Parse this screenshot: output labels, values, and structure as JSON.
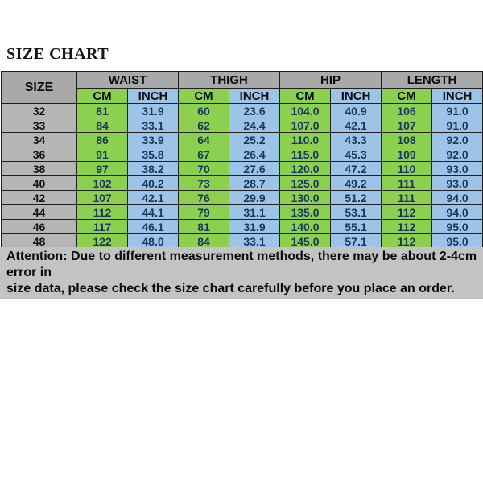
{
  "title": "SIZE CHART",
  "table": {
    "size_header": "SIZE",
    "groups": [
      "WAIST",
      "THIGH",
      "HIP",
      "LENGTH"
    ],
    "unit_headers": [
      "CM",
      "INCH"
    ],
    "rows": [
      [
        "32",
        "81",
        "31.9",
        "60",
        "23.6",
        "104.0",
        "40.9",
        "106",
        "91.0"
      ],
      [
        "33",
        "84",
        "33.1",
        "62",
        "24.4",
        "107.0",
        "42.1",
        "107",
        "91.0"
      ],
      [
        "34",
        "86",
        "33.9",
        "64",
        "25.2",
        "110.0",
        "43.3",
        "108",
        "92.0"
      ],
      [
        "36",
        "91",
        "35.8",
        "67",
        "26.4",
        "115.0",
        "45.3",
        "109",
        "92.0"
      ],
      [
        "38",
        "97",
        "38.2",
        "70",
        "27.6",
        "120.0",
        "47.2",
        "110",
        "93.0"
      ],
      [
        "40",
        "102",
        "40.2",
        "73",
        "28.7",
        "125.0",
        "49.2",
        "111",
        "93.0"
      ],
      [
        "42",
        "107",
        "42.1",
        "76",
        "29.9",
        "130.0",
        "51.2",
        "111",
        "94.0"
      ],
      [
        "44",
        "112",
        "44.1",
        "79",
        "31.1",
        "135.0",
        "53.1",
        "112",
        "94.0"
      ],
      [
        "46",
        "117",
        "46.1",
        "81",
        "31.9",
        "140.0",
        "55.1",
        "112",
        "95.0"
      ],
      [
        "48",
        "122",
        "48.0",
        "84",
        "33.1",
        "145.0",
        "57.1",
        "112",
        "95.0"
      ]
    ]
  },
  "attention": {
    "line1": "Attention: Due to different measurement methods, there may be about 2-4cm error in",
    "line2": "size data, please check the size chart carefully before you place an order."
  },
  "colors": {
    "header_gray": "#a9a9a9",
    "size_cell_gray": "#b5b5b5",
    "cm_green": "#8dd050",
    "inch_blue": "#9dc3e6",
    "attention_gray": "#c3c3c3",
    "border": "#1f1f1f"
  },
  "chart_data": {
    "type": "table",
    "title": "SIZE CHART",
    "columns": [
      "SIZE",
      "WAIST CM",
      "WAIST INCH",
      "THIGH CM",
      "THIGH INCH",
      "HIP CM",
      "HIP INCH",
      "LENGTH CM",
      "LENGTH INCH"
    ],
    "rows": [
      [
        32,
        81,
        31.9,
        60,
        23.6,
        104.0,
        40.9,
        106,
        91.0
      ],
      [
        33,
        84,
        33.1,
        62,
        24.4,
        107.0,
        42.1,
        107,
        91.0
      ],
      [
        34,
        86,
        33.9,
        64,
        25.2,
        110.0,
        43.3,
        108,
        92.0
      ],
      [
        36,
        91,
        35.8,
        67,
        26.4,
        115.0,
        45.3,
        109,
        92.0
      ],
      [
        38,
        97,
        38.2,
        70,
        27.6,
        120.0,
        47.2,
        110,
        93.0
      ],
      [
        40,
        102,
        40.2,
        73,
        28.7,
        125.0,
        49.2,
        111,
        93.0
      ],
      [
        42,
        107,
        42.1,
        76,
        29.9,
        130.0,
        51.2,
        111,
        94.0
      ],
      [
        44,
        112,
        44.1,
        79,
        31.1,
        135.0,
        53.1,
        112,
        94.0
      ],
      [
        46,
        117,
        46.1,
        81,
        31.9,
        140.0,
        55.1,
        112,
        95.0
      ],
      [
        48,
        122,
        48.0,
        84,
        33.1,
        145.0,
        57.1,
        112,
        95.0
      ]
    ],
    "annotations": [
      "Attention: Due to different measurement methods, there may be about 2-4cm error in size data, please check the size chart carefully before you place an order."
    ]
  }
}
